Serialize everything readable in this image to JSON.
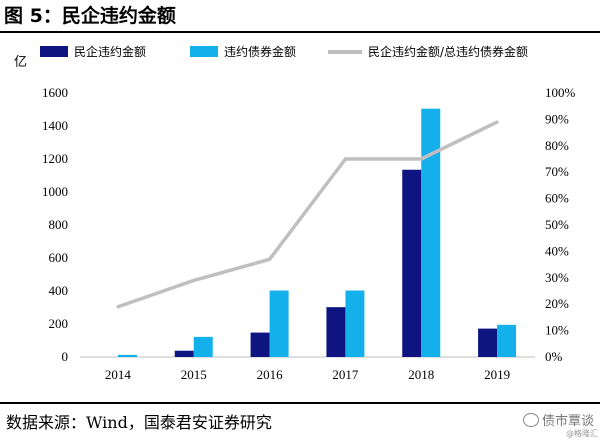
{
  "title": "图 5：民企违约金额",
  "source": "数据来源：Wind，国泰君安证券研究",
  "watermark": "债市覃谈",
  "watermark_small": "@格隆汇",
  "colors": {
    "series1": "#0e1480",
    "series2": "#14b0ec",
    "line": "#bfbfbf"
  },
  "chart_data": {
    "type": "bar",
    "categories": [
      "2014",
      "2015",
      "2016",
      "2017",
      "2018",
      "2019"
    ],
    "series": [
      {
        "name": "民企违约金额",
        "type": "bar",
        "axis": "left",
        "values": [
          0,
          38,
          148,
          302,
          1135,
          172
        ]
      },
      {
        "name": "违约债券金额",
        "type": "bar",
        "axis": "left",
        "values": [
          13,
          122,
          403,
          403,
          1505,
          195
        ]
      },
      {
        "name": "民企违约金额/总违约债券金额",
        "type": "line",
        "axis": "right",
        "values": [
          0.19,
          0.29,
          0.37,
          0.75,
          0.75,
          0.89
        ]
      }
    ],
    "ylabel": "亿",
    "ylim": [
      0,
      1600
    ],
    "yticks": [
      0,
      200,
      400,
      600,
      800,
      1000,
      1200,
      1400,
      1600
    ],
    "y2lim": [
      0,
      1.0
    ],
    "y2ticks": [
      "0%",
      "10%",
      "20%",
      "30%",
      "40%",
      "50%",
      "60%",
      "70%",
      "80%",
      "90%",
      "100%"
    ],
    "legend": "top",
    "grid": false
  }
}
